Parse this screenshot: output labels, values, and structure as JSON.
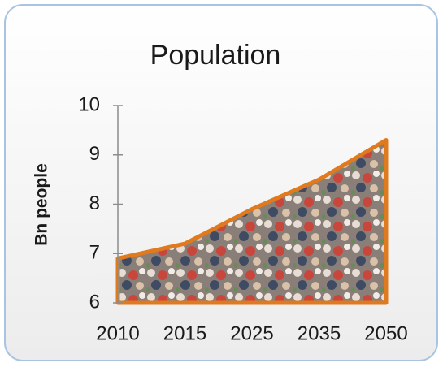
{
  "chart_data": {
    "type": "area",
    "title": "Population",
    "y_label": "Bn people",
    "categories": [
      "2010",
      "2015",
      "2025",
      "2035",
      "2050"
    ],
    "values": [
      6.9,
      7.2,
      7.9,
      8.5,
      9.3
    ],
    "color": "#e07a1f",
    "ylim": [
      6,
      10
    ],
    "yticks": [
      6,
      7,
      8,
      9,
      10
    ]
  }
}
